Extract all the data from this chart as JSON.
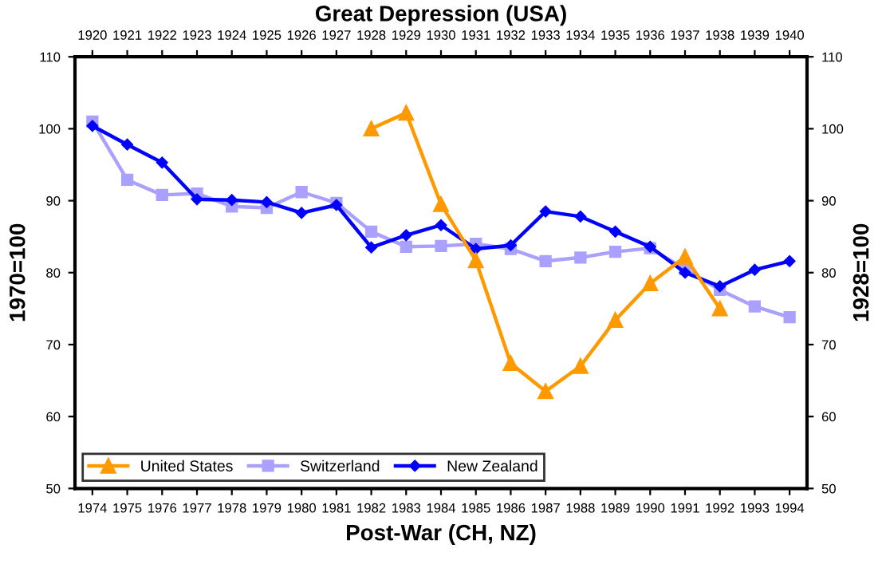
{
  "chart_data": {
    "type": "line",
    "title": "Great Depression (USA)",
    "xlabel": "Post-War (CH, NZ)",
    "ylabel": "1970=100",
    "y2label": "1928=100",
    "xlim": [
      1973.5,
      1994.5
    ],
    "xticks": [
      1974,
      1975,
      1976,
      1977,
      1978,
      1979,
      1980,
      1981,
      1982,
      1983,
      1984,
      1985,
      1986,
      1987,
      1988,
      1989,
      1990,
      1991,
      1992,
      1993,
      1994
    ],
    "x2lim": [
      1919.5,
      1940.5
    ],
    "x2ticks": [
      1920,
      1921,
      1922,
      1923,
      1924,
      1925,
      1926,
      1927,
      1928,
      1929,
      1930,
      1931,
      1932,
      1933,
      1934,
      1935,
      1936,
      1937,
      1938,
      1939,
      1940
    ],
    "ylim": [
      50,
      110
    ],
    "yticks": [
      50,
      60,
      70,
      80,
      90,
      100,
      110
    ],
    "y2lim": [
      50,
      110
    ],
    "y2ticks": [
      50,
      60,
      70,
      80,
      90,
      100,
      110
    ],
    "legend": "bottom left",
    "grid": false,
    "series": [
      {
        "name": "United States",
        "color": "#ff9900",
        "marker": "triangle",
        "axis": "x2",
        "x": [
          1928,
          1929,
          1930,
          1931,
          1932,
          1933,
          1934,
          1935,
          1936,
          1937,
          1938
        ],
        "values": [
          100,
          102.2,
          89.5,
          81.7,
          67.4,
          63.5,
          67,
          73.4,
          78.5,
          82.2,
          75
        ]
      },
      {
        "name": "Switzerland",
        "color": "#aaa0ff",
        "marker": "square",
        "x": [
          1974,
          1975,
          1976,
          1977,
          1978,
          1979,
          1980,
          1981,
          1982,
          1983,
          1984,
          1985,
          1986,
          1987,
          1988,
          1989,
          1990,
          1991,
          1992,
          1993,
          1994
        ],
        "values": [
          101,
          92.9,
          90.8,
          91,
          89.2,
          89,
          91.2,
          89.7,
          85.7,
          83.6,
          83.7,
          84,
          83.3,
          81.6,
          82.1,
          82.9,
          83.4,
          80.5,
          77.6,
          75.3,
          73.8
        ]
      },
      {
        "name": "New Zealand",
        "color": "#0000ff",
        "marker": "diamond",
        "x": [
          1974,
          1975,
          1976,
          1977,
          1978,
          1979,
          1980,
          1981,
          1982,
          1983,
          1984,
          1985,
          1986,
          1987,
          1988,
          1989,
          1990,
          1991,
          1992,
          1993,
          1994
        ],
        "values": [
          100.4,
          97.8,
          95.3,
          90.2,
          90.1,
          89.8,
          88.3,
          89.4,
          83.5,
          85.2,
          86.6,
          83.3,
          83.8,
          88.5,
          87.8,
          85.7,
          83.6,
          80,
          78.1,
          80.4,
          81.6
        ]
      }
    ]
  }
}
